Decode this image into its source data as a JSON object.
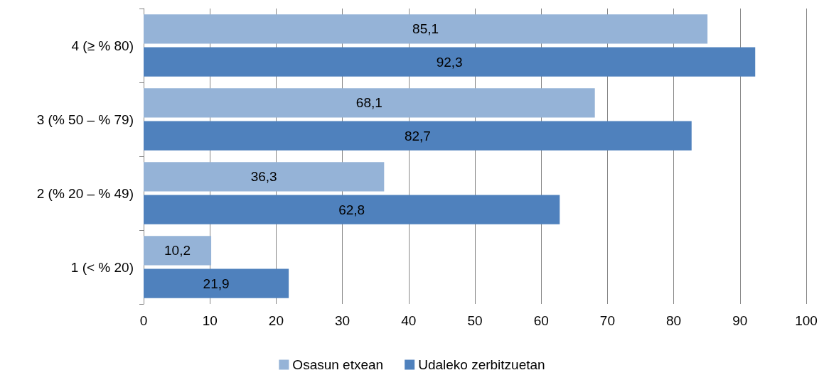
{
  "chart_data": {
    "type": "bar",
    "orientation": "horizontal",
    "categories": [
      "4 (≥ % 80)",
      "3 (% 50 – % 79)",
      "2 (% 20 – % 49)",
      "1 (< % 20)"
    ],
    "series": [
      {
        "name": "Osasun etxean",
        "color": "#95b3d7",
        "values": [
          85.1,
          68.1,
          36.3,
          10.2
        ],
        "value_labels": [
          "85,1",
          "68,1",
          "36,3",
          "10,2"
        ]
      },
      {
        "name": "Udaleko zerbitzuetan",
        "color": "#4f81bd",
        "values": [
          92.3,
          82.7,
          62.8,
          21.9
        ],
        "value_labels": [
          "92,3",
          "82,7",
          "62,8",
          "21,9"
        ]
      }
    ],
    "xlim": [
      0,
      100
    ],
    "xticks": [
      0,
      10,
      20,
      30,
      40,
      50,
      60,
      70,
      80,
      90,
      100
    ],
    "grid": "x",
    "legend": "bottom"
  }
}
